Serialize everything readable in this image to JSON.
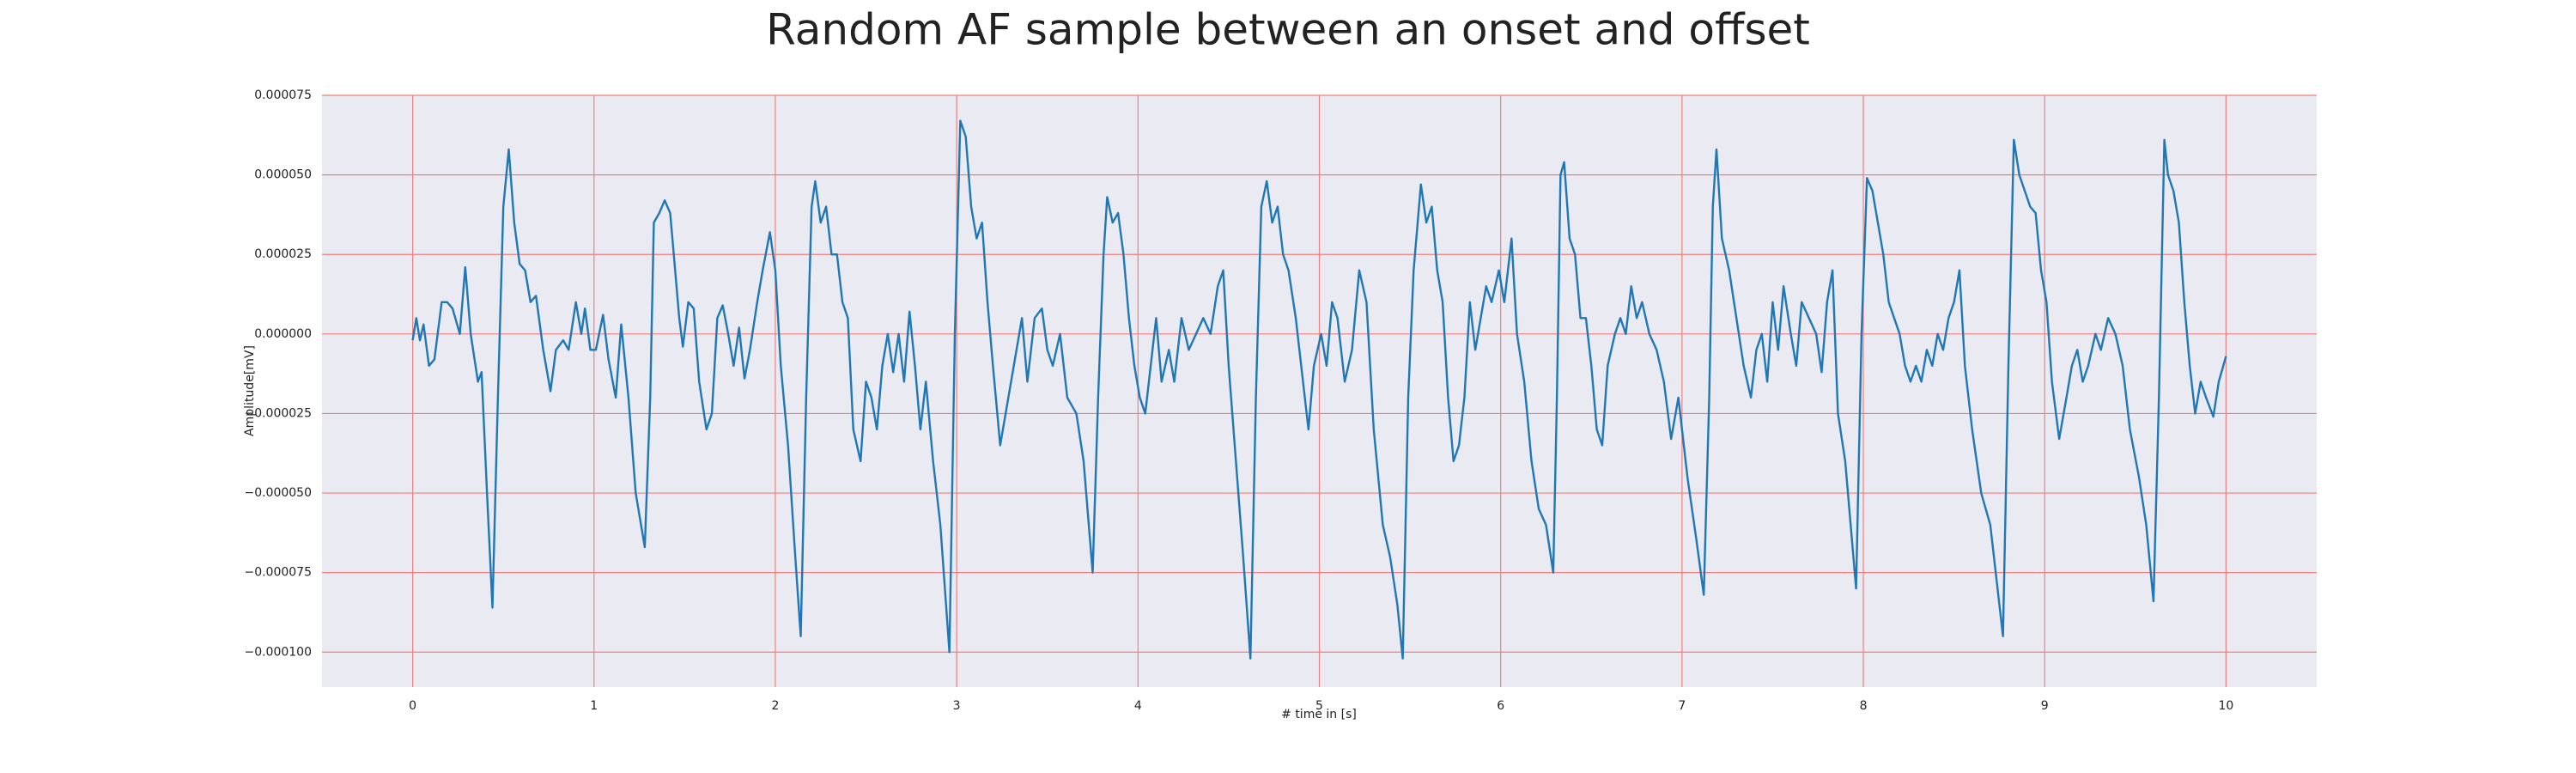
{
  "chart_data": {
    "type": "line",
    "title": "Random AF sample between an onset and offset",
    "xlabel": "# time in [s]",
    "ylabel": "Amplitude[mV]",
    "color": "#1f77b4",
    "background": "#eaeaf2",
    "grid": true,
    "grid_color": "#f08080",
    "xlim": [
      -0.5,
      10.5
    ],
    "ylim": [
      -0.000111,
      7.5e-05
    ],
    "xticks": [
      0,
      1,
      2,
      3,
      4,
      5,
      6,
      7,
      8,
      9,
      10
    ],
    "yticks": [
      {
        "value": -0.0001,
        "label": "−0.000100"
      },
      {
        "value": -7.5e-05,
        "label": "−0.000075"
      },
      {
        "value": -5e-05,
        "label": "−0.000050"
      },
      {
        "value": -2.5e-05,
        "label": "−0.000025"
      },
      {
        "value": 0,
        "label": "0.000000"
      },
      {
        "value": 2.5e-05,
        "label": "0.000025"
      },
      {
        "value": 5e-05,
        "label": "0.000050"
      },
      {
        "value": 7.5e-05,
        "label": "0.000075"
      }
    ],
    "x": [
      0,
      0.02,
      0.04,
      0.06,
      0.09,
      0.12,
      0.16,
      0.19,
      0.22,
      0.26,
      0.29,
      0.32,
      0.36,
      0.38,
      0.41,
      0.44,
      0.47,
      0.5,
      0.53,
      0.56,
      0.59,
      0.62,
      0.65,
      0.68,
      0.72,
      0.76,
      0.79,
      0.83,
      0.86,
      0.9,
      0.93,
      0.95,
      0.98,
      1.01,
      1.05,
      1.08,
      1.12,
      1.15,
      1.19,
      1.23,
      1.28,
      1.31,
      1.33,
      1.36,
      1.39,
      1.42,
      1.44,
      1.47,
      1.49,
      1.52,
      1.55,
      1.58,
      1.62,
      1.65,
      1.68,
      1.71,
      1.74,
      1.77,
      1.8,
      1.83,
      1.86,
      1.9,
      1.93,
      1.97,
      2.0,
      2.03,
      2.07,
      2.11,
      2.14,
      2.17,
      2.2,
      2.22,
      2.25,
      2.28,
      2.31,
      2.34,
      2.37,
      2.4,
      2.43,
      2.47,
      2.5,
      2.53,
      2.56,
      2.59,
      2.62,
      2.65,
      2.68,
      2.71,
      2.74,
      2.77,
      2.8,
      2.83,
      2.87,
      2.91,
      2.96,
      2.99,
      3.02,
      3.05,
      3.08,
      3.11,
      3.14,
      3.17,
      3.2,
      3.24,
      3.27,
      3.3,
      3.33,
      3.36,
      3.39,
      3.43,
      3.47,
      3.5,
      3.53,
      3.57,
      3.61,
      3.66,
      3.7,
      3.75,
      3.78,
      3.81,
      3.83,
      3.86,
      3.89,
      3.92,
      3.95,
      3.98,
      4.01,
      4.04,
      4.07,
      4.1,
      4.13,
      4.17,
      4.2,
      4.24,
      4.28,
      4.32,
      4.36,
      4.4,
      4.44,
      4.47,
      4.5,
      4.54,
      4.58,
      4.62,
      4.65,
      4.68,
      4.71,
      4.74,
      4.77,
      4.8,
      4.83,
      4.87,
      4.91,
      4.94,
      4.97,
      5.01,
      5.04,
      5.07,
      5.1,
      5.14,
      5.18,
      5.22,
      5.26,
      5.3,
      5.35,
      5.39,
      5.43,
      5.46,
      5.49,
      5.52,
      5.56,
      5.59,
      5.62,
      5.65,
      5.68,
      5.71,
      5.74,
      5.77,
      5.8,
      5.83,
      5.86,
      5.89,
      5.92,
      5.95,
      5.99,
      6.02,
      6.06,
      6.09,
      6.13,
      6.17,
      6.21,
      6.25,
      6.29,
      6.31,
      6.33,
      6.35,
      6.38,
      6.41,
      6.44,
      6.47,
      6.5,
      6.53,
      6.56,
      6.59,
      6.63,
      6.66,
      6.69,
      6.72,
      6.75,
      6.78,
      6.82,
      6.86,
      6.9,
      6.94,
      6.98,
      7.03,
      7.08,
      7.12,
      7.15,
      7.17,
      7.19,
      7.22,
      7.26,
      7.3,
      7.34,
      7.38,
      7.41,
      7.44,
      7.47,
      7.5,
      7.53,
      7.56,
      7.6,
      7.63,
      7.66,
      7.7,
      7.74,
      7.77,
      7.8,
      7.83,
      7.86,
      7.9,
      7.93,
      7.96,
      7.99,
      8.02,
      8.05,
      8.08,
      8.11,
      8.14,
      8.17,
      8.2,
      8.23,
      8.26,
      8.29,
      8.32,
      8.35,
      8.38,
      8.41,
      8.44,
      8.47,
      8.5,
      8.53,
      8.56,
      8.6,
      8.65,
      8.7,
      8.74,
      8.77,
      8.8,
      8.83,
      8.86,
      8.89,
      8.92,
      8.95,
      8.98,
      9.01,
      9.04,
      9.08,
      9.12,
      9.15,
      9.18,
      9.21,
      9.24,
      9.28,
      9.31,
      9.35,
      9.39,
      9.43,
      9.47,
      9.52,
      9.56,
      9.6,
      9.63,
      9.66,
      9.68,
      9.71,
      9.74,
      9.77,
      9.8,
      9.83,
      9.86,
      9.89,
      9.93,
      9.96,
      10.0
    ],
    "values": [
      -2e-06,
      5e-06,
      -2e-06,
      3e-06,
      -1e-05,
      -8e-06,
      1e-05,
      1e-05,
      8e-06,
      0,
      2.1e-05,
      0,
      -1.5e-05,
      -1.2e-05,
      -5e-05,
      -8.6e-05,
      -2e-05,
      4e-05,
      5.8e-05,
      3.5e-05,
      2.2e-05,
      2e-05,
      1e-05,
      1.2e-05,
      -5e-06,
      -1.8e-05,
      -5e-06,
      -2e-06,
      -5e-06,
      1e-05,
      0,
      8e-06,
      -5e-06,
      -5e-06,
      6e-06,
      -8e-06,
      -2e-05,
      3e-06,
      -2e-05,
      -5e-05,
      -6.7e-05,
      -2e-05,
      3.5e-05,
      3.8e-05,
      4.2e-05,
      3.8e-05,
      2.5e-05,
      5e-06,
      -4e-06,
      1e-05,
      8e-06,
      -1.5e-05,
      -3e-05,
      -2.5e-05,
      5e-06,
      9e-06,
      0,
      -1e-05,
      2e-06,
      -1.4e-05,
      -5e-06,
      1e-05,
      2e-05,
      3.2e-05,
      2e-05,
      -1e-05,
      -3.5e-05,
      -7e-05,
      -9.5e-05,
      -2e-05,
      4e-05,
      4.8e-05,
      3.5e-05,
      4e-05,
      2.5e-05,
      2.5e-05,
      1e-05,
      5e-06,
      -3e-05,
      -4e-05,
      -1.5e-05,
      -2e-05,
      -3e-05,
      -1e-05,
      0,
      -1.2e-05,
      0,
      -1.5e-05,
      7e-06,
      -1e-05,
      -3e-05,
      -1.5e-05,
      -4e-05,
      -6e-05,
      -0.0001,
      0,
      6.7e-05,
      6.2e-05,
      4e-05,
      3e-05,
      3.5e-05,
      1e-05,
      -1e-05,
      -3.5e-05,
      -2.5e-05,
      -1.5e-05,
      -5e-06,
      5e-06,
      -1.5e-05,
      5e-06,
      8e-06,
      -5e-06,
      -1e-05,
      0,
      -2e-05,
      -2.5e-05,
      -4e-05,
      -7.5e-05,
      -2e-05,
      2.5e-05,
      4.3e-05,
      3.5e-05,
      3.8e-05,
      2.5e-05,
      5e-06,
      -1e-05,
      -2e-05,
      -2.5e-05,
      -1e-05,
      5e-06,
      -1.5e-05,
      -5e-06,
      -1.5e-05,
      5e-06,
      -5e-06,
      0,
      5e-06,
      0,
      1.5e-05,
      2e-05,
      -1e-05,
      -4e-05,
      -7e-05,
      -0.000102,
      -2e-05,
      4e-05,
      4.8e-05,
      3.5e-05,
      4e-05,
      2.5e-05,
      2e-05,
      5e-06,
      -1.5e-05,
      -3e-05,
      -1e-05,
      0,
      -1e-05,
      1e-05,
      5e-06,
      -1.5e-05,
      -5e-06,
      2e-05,
      1e-05,
      -3e-05,
      -6e-05,
      -7e-05,
      -8.5e-05,
      -0.000102,
      -2e-05,
      2e-05,
      4.7e-05,
      3.5e-05,
      4e-05,
      2e-05,
      1e-05,
      -2e-05,
      -4e-05,
      -3.5e-05,
      -2e-05,
      1e-05,
      -5e-06,
      5e-06,
      1.5e-05,
      1e-05,
      2e-05,
      1e-05,
      3e-05,
      0,
      -1.5e-05,
      -4e-05,
      -5.5e-05,
      -6e-05,
      -7.5e-05,
      -2e-05,
      5e-05,
      5.4e-05,
      3e-05,
      2.5e-05,
      5e-06,
      5e-06,
      -1e-05,
      -3e-05,
      -3.5e-05,
      -1e-05,
      0,
      5e-06,
      0,
      1.5e-05,
      5e-06,
      1e-05,
      0,
      -5e-06,
      -1.5e-05,
      -3.3e-05,
      -2e-05,
      -4.5e-05,
      -6.5e-05,
      -8.2e-05,
      -2e-05,
      4e-05,
      5.8e-05,
      3e-05,
      2e-05,
      5e-06,
      -1e-05,
      -2e-05,
      -5e-06,
      0,
      -1.5e-05,
      1e-05,
      -5e-06,
      1.5e-05,
      0,
      -1e-05,
      1e-05,
      5e-06,
      0,
      -1.2e-05,
      1e-05,
      2e-05,
      -2.5e-05,
      -4e-05,
      -6e-05,
      -8e-05,
      0,
      4.9e-05,
      4.5e-05,
      3.5e-05,
      2.5e-05,
      1e-05,
      5e-06,
      0,
      -1e-05,
      -1.5e-05,
      -1e-05,
      -1.5e-05,
      -5e-06,
      -1e-05,
      0,
      -5e-06,
      5e-06,
      1e-05,
      2e-05,
      -1e-05,
      -3e-05,
      -5e-05,
      -6e-05,
      -8e-05,
      -9.5e-05,
      -1e-05,
      6.1e-05,
      5e-05,
      4.5e-05,
      4e-05,
      3.8e-05,
      2e-05,
      1e-05,
      -1.5e-05,
      -3.3e-05,
      -2e-05,
      -1e-05,
      -5e-06,
      -1.5e-05,
      -1e-05,
      0,
      -5e-06,
      5e-06,
      0,
      -1e-05,
      -3e-05,
      -4.5e-05,
      -6e-05,
      -8.4e-05,
      -2e-05,
      6.1e-05,
      5e-05,
      4.5e-05,
      3.5e-05,
      1e-05,
      -1e-05,
      -2.5e-05,
      -1.5e-05,
      -2e-05,
      -2.6e-05,
      -1.5e-05,
      -7e-06
    ]
  }
}
